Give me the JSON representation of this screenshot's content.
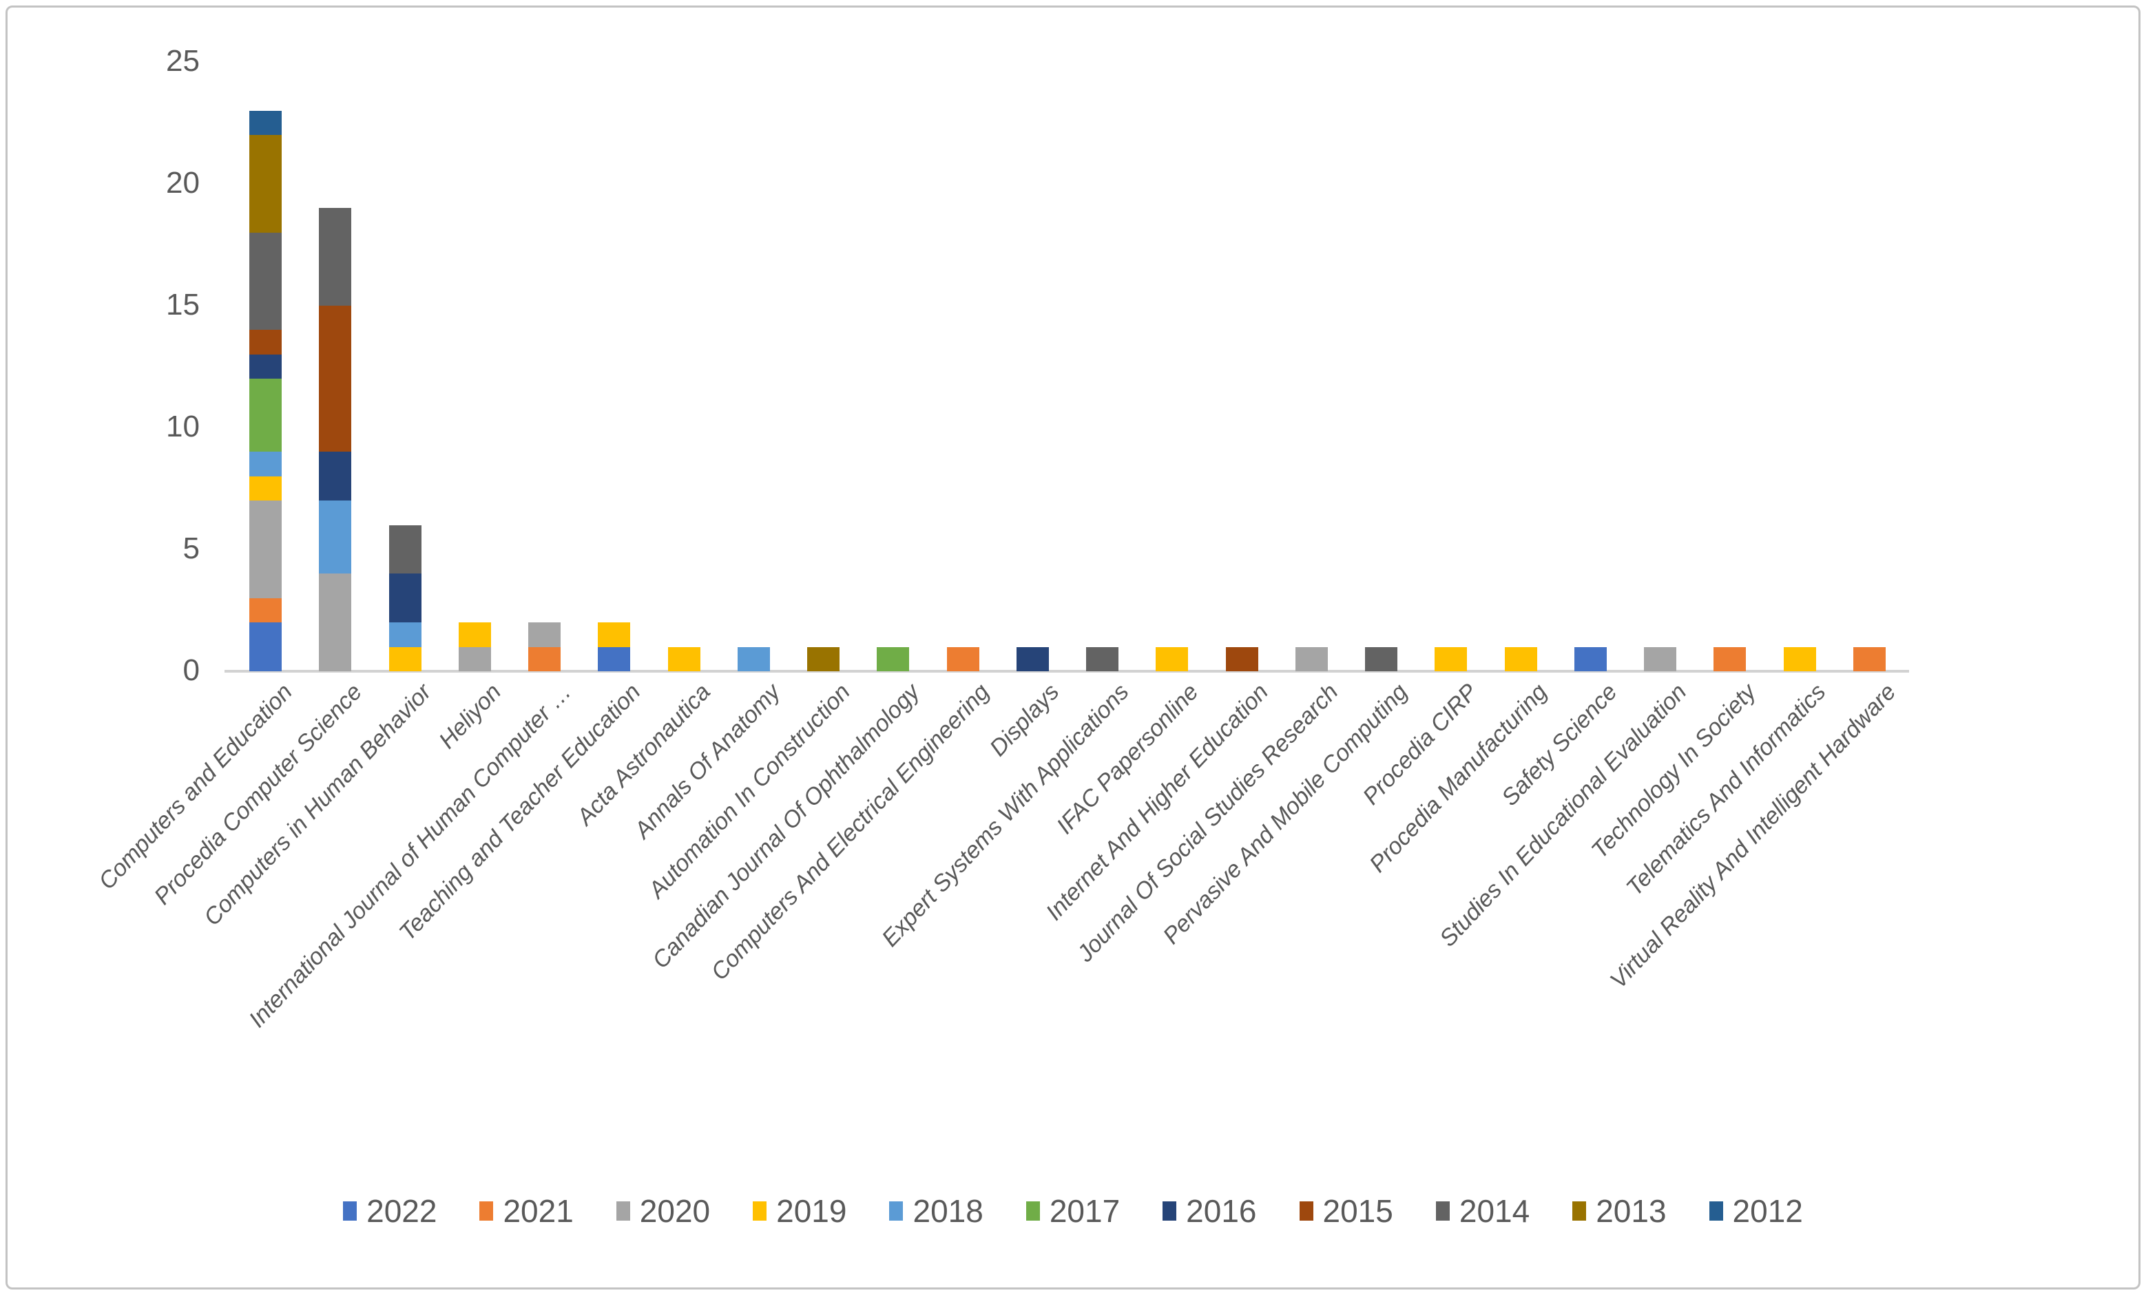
{
  "chart_data": {
    "type": "bar",
    "stacked": true,
    "title": "",
    "xlabel": "",
    "ylabel": "",
    "ylim": [
      0,
      25
    ],
    "yticks": [
      0,
      5,
      10,
      15,
      20,
      25
    ],
    "grid": false,
    "legend_position": "bottom",
    "stack_order": "first series at bottom",
    "categories": [
      "Computers and Education",
      "Procedia Computer Science",
      "Computers in Human Behavior",
      "Heliyon",
      "International Journal of Human Computer …",
      "Teaching and Teacher Education",
      "Acta Astronautica",
      "Annals Of Anatomy",
      "Automation In Construction",
      "Canadian Journal Of Ophthalmology",
      "Computers And Electrical Engineering",
      "Displays",
      "Expert Systems With Applications",
      "IFAC Papersonline",
      "Internet And Higher Education",
      "Journal Of Social Studies Research",
      "Pervasive And Mobile Computing",
      "Procedia CIRP",
      "Procedia Manufacturing",
      "Safety Science",
      "Studies In Educational Evaluation",
      "Technology In Society",
      "Telematics And Informatics",
      "Virtual Reality And Intelligent Hardware"
    ],
    "series": [
      {
        "name": "2022",
        "color": "#4472C4",
        "values": [
          2,
          0,
          0,
          0,
          0,
          1,
          0,
          0,
          0,
          0,
          0,
          0,
          0,
          0,
          0,
          0,
          0,
          0,
          0,
          1,
          0,
          0,
          0,
          0
        ]
      },
      {
        "name": "2021",
        "color": "#ED7D31",
        "values": [
          1,
          0,
          0,
          0,
          1,
          0,
          0,
          0,
          0,
          0,
          1,
          0,
          0,
          0,
          0,
          0,
          0,
          0,
          0,
          0,
          0,
          1,
          0,
          1
        ]
      },
      {
        "name": "2020",
        "color": "#A5A5A5",
        "values": [
          4,
          4,
          0,
          1,
          1,
          0,
          0,
          0,
          0,
          0,
          0,
          0,
          0,
          0,
          0,
          1,
          0,
          0,
          0,
          0,
          1,
          0,
          0,
          0
        ]
      },
      {
        "name": "2019",
        "color": "#FFC000",
        "values": [
          1,
          0,
          1,
          1,
          0,
          1,
          1,
          0,
          0,
          0,
          0,
          0,
          0,
          1,
          0,
          0,
          0,
          1,
          1,
          0,
          0,
          0,
          1,
          0
        ]
      },
      {
        "name": "2018",
        "color": "#5B9BD5",
        "values": [
          1,
          3,
          1,
          0,
          0,
          0,
          0,
          1,
          0,
          0,
          0,
          0,
          0,
          0,
          0,
          0,
          0,
          0,
          0,
          0,
          0,
          0,
          0,
          0
        ]
      },
      {
        "name": "2017",
        "color": "#70AD47",
        "values": [
          3,
          0,
          0,
          0,
          0,
          0,
          0,
          0,
          0,
          1,
          0,
          0,
          0,
          0,
          0,
          0,
          0,
          0,
          0,
          0,
          0,
          0,
          0,
          0
        ]
      },
      {
        "name": "2016",
        "color": "#264478",
        "values": [
          1,
          2,
          2,
          0,
          0,
          0,
          0,
          0,
          0,
          0,
          0,
          1,
          0,
          0,
          0,
          0,
          0,
          0,
          0,
          0,
          0,
          0,
          0,
          0
        ]
      },
      {
        "name": "2015",
        "color": "#9E480E",
        "values": [
          1,
          6,
          0,
          0,
          0,
          0,
          0,
          0,
          0,
          0,
          0,
          0,
          0,
          0,
          1,
          0,
          0,
          0,
          0,
          0,
          0,
          0,
          0,
          0
        ]
      },
      {
        "name": "2014",
        "color": "#636363",
        "values": [
          4,
          4,
          2,
          0,
          0,
          0,
          0,
          0,
          0,
          0,
          0,
          0,
          1,
          0,
          0,
          0,
          1,
          0,
          0,
          0,
          0,
          0,
          0,
          0
        ]
      },
      {
        "name": "2013",
        "color": "#997300",
        "values": [
          4,
          0,
          0,
          0,
          0,
          0,
          0,
          0,
          1,
          0,
          0,
          0,
          0,
          0,
          0,
          0,
          0,
          0,
          0,
          0,
          0,
          0,
          0,
          0
        ]
      },
      {
        "name": "2012",
        "color": "#255E91",
        "values": [
          1,
          0,
          0,
          0,
          0,
          0,
          0,
          0,
          0,
          0,
          0,
          0,
          0,
          0,
          0,
          0,
          0,
          0,
          0,
          0,
          0,
          0,
          0,
          0
        ]
      }
    ],
    "bar_totals": [
      23,
      19,
      6,
      2,
      2,
      2,
      1,
      1,
      1,
      1,
      1,
      1,
      1,
      1,
      1,
      1,
      1,
      1,
      1,
      1,
      1,
      1,
      1,
      1
    ]
  },
  "axis_color": "#595959",
  "baseline_color": "#d2d2d2"
}
